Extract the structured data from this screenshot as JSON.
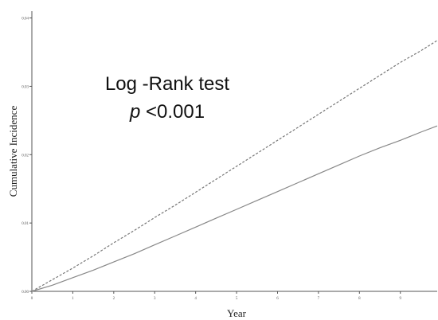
{
  "chart_data": {
    "type": "line",
    "xlabel": "Year",
    "ylabel": "Cumulative Incidence",
    "xlim": [
      0,
      9.9
    ],
    "ylim": [
      0,
      0.041
    ],
    "x_ticks": [
      0,
      1,
      2,
      3,
      4,
      5,
      6,
      7,
      8,
      9
    ],
    "x_tick_labels": [
      "0",
      "1",
      "2",
      "3",
      "4",
      "5",
      "6",
      "7",
      "8",
      "9"
    ],
    "y_ticks": [
      0.0,
      0.01,
      0.02,
      0.03,
      0.04
    ],
    "y_tick_labels": [
      "0.00",
      "0.01",
      "0.02",
      "0.03",
      "0.04"
    ],
    "grid": false,
    "legend": "none",
    "annotation": {
      "line1": "Log -Rank test",
      "line2_italic": "p",
      "line2_rest": " <0.001"
    },
    "series": [
      {
        "style": "dashed",
        "color": "#777777",
        "x": [
          0,
          0.5,
          1,
          1.5,
          2,
          2.5,
          3,
          3.5,
          4,
          4.5,
          5,
          5.5,
          6,
          6.5,
          7,
          7.5,
          8,
          8.5,
          9,
          9.5,
          9.9
        ],
        "y": [
          0.0,
          0.0017,
          0.0034,
          0.0052,
          0.0071,
          0.0089,
          0.0108,
          0.0126,
          0.0145,
          0.0164,
          0.0183,
          0.0202,
          0.0221,
          0.024,
          0.0259,
          0.0278,
          0.0297,
          0.0316,
          0.0335,
          0.0352,
          0.0367
        ]
      },
      {
        "style": "solid",
        "color": "#888888",
        "x": [
          0,
          0.5,
          1,
          1.5,
          2,
          2.5,
          3,
          3.5,
          4,
          4.5,
          5,
          5.5,
          6,
          6.5,
          7,
          7.5,
          8,
          8.5,
          9,
          9.5,
          9.9
        ],
        "y": [
          0.0,
          0.0009,
          0.002,
          0.0031,
          0.0043,
          0.0055,
          0.0068,
          0.0081,
          0.0094,
          0.0107,
          0.012,
          0.0133,
          0.0146,
          0.0159,
          0.0172,
          0.0185,
          0.0198,
          0.021,
          0.0221,
          0.0233,
          0.0242
        ]
      }
    ]
  }
}
